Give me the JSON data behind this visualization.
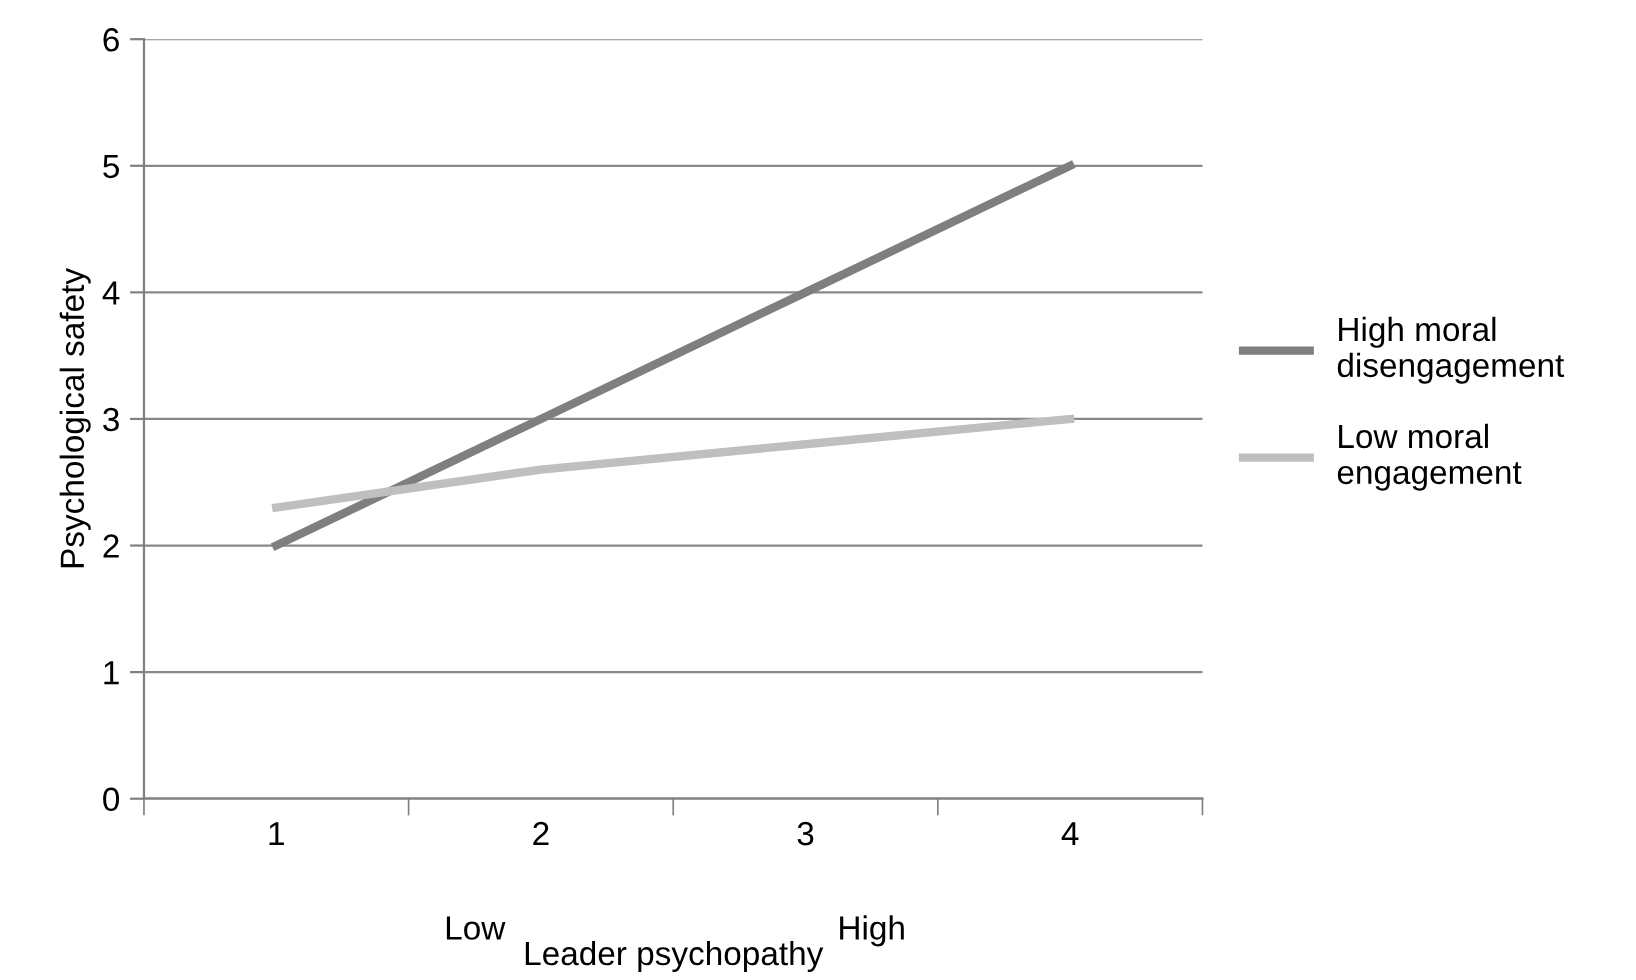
{
  "chart_data": {
    "type": "line",
    "xlabel": "Leader psychopathy",
    "ylabel": "Psychological safety",
    "categories": [
      "1",
      "2",
      "3",
      "4"
    ],
    "series": [
      {
        "name": "High moral\ndisengagement",
        "color": "#7f7f7f",
        "values": [
          2,
          3,
          4,
          5
        ]
      },
      {
        "name": "Low moral\nengagement",
        "color": "#bfbfbf",
        "values": [
          2.3,
          2.6,
          2.8,
          3.0
        ]
      }
    ],
    "ylim": [
      0,
      6
    ],
    "yticks": [
      0,
      1,
      2,
      3,
      4,
      5,
      6
    ],
    "grid": "y",
    "legend": "right",
    "marker": "none",
    "line_style": "solid",
    "annotations": [
      "Low",
      "High"
    ]
  }
}
